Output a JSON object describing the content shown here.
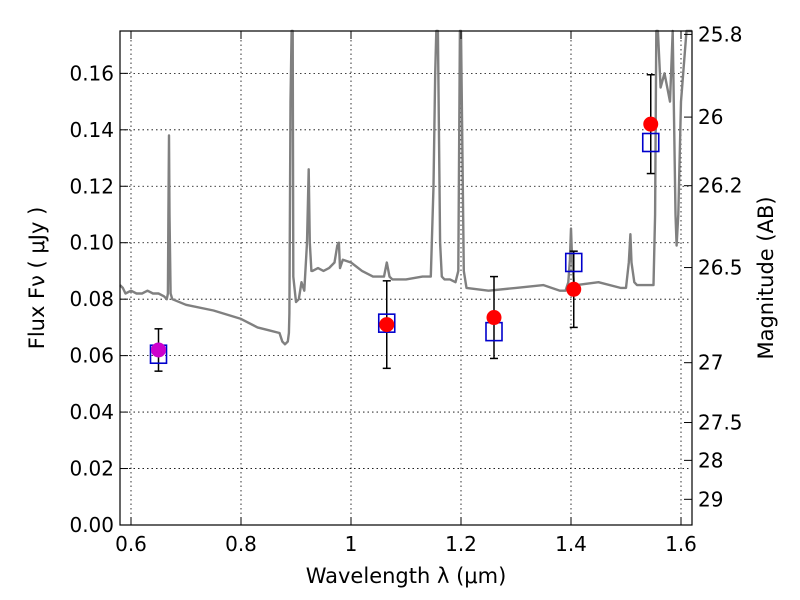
{
  "chart_data": {
    "type": "scatter",
    "title": "",
    "xlabel": "Wavelength  λ (μm)",
    "ylabel": "Flux  Fν  ( μJy )",
    "y2label": "Magnitude (AB)",
    "xlim": [
      0.58,
      1.62
    ],
    "ylim": [
      0.0,
      0.175
    ],
    "grid": true,
    "x_ticks": [
      0.6,
      0.8,
      1.0,
      1.2,
      1.4,
      1.6
    ],
    "x_tick_labels": [
      "0.6",
      "0.8",
      "1",
      "1.2",
      "1.4",
      "1.6"
    ],
    "y_ticks": [
      0.0,
      0.02,
      0.04,
      0.06,
      0.08,
      0.1,
      0.12,
      0.14,
      0.16
    ],
    "y_tick_labels": [
      "0.00",
      "0.02",
      "0.04",
      "0.06",
      "0.08",
      "0.10",
      "0.12",
      "0.14",
      "0.16"
    ],
    "y2_ticks": [
      {
        "label": "25.8",
        "flux": 0.1738
      },
      {
        "label": "26",
        "flux": 0.1445
      },
      {
        "label": "26.2",
        "flux": 0.1202
      },
      {
        "label": "26.5",
        "flux": 0.0912
      },
      {
        "label": "27",
        "flux": 0.0575
      },
      {
        "label": "27.5",
        "flux": 0.0363
      },
      {
        "label": "28",
        "flux": 0.0229
      },
      {
        "label": "29",
        "flux": 0.0091
      }
    ],
    "series": [
      {
        "marker": "line",
        "color": "#808080",
        "x": [
          0.58,
          0.585,
          0.59,
          0.6,
          0.61,
          0.62,
          0.63,
          0.64,
          0.65,
          0.66,
          0.665,
          0.667,
          0.668,
          0.669,
          0.67,
          0.672,
          0.675,
          0.7,
          0.75,
          0.8,
          0.83,
          0.85,
          0.87,
          0.875,
          0.88,
          0.885,
          0.887,
          0.888,
          0.89,
          0.892,
          0.894,
          0.895,
          0.9,
          0.905,
          0.91,
          0.915,
          0.92,
          0.923,
          0.925,
          0.928,
          0.93,
          0.94,
          0.95,
          0.96,
          0.97,
          0.975,
          0.978,
          0.98,
          0.985,
          1.0,
          1.02,
          1.04,
          1.06,
          1.065,
          1.07,
          1.075,
          1.1,
          1.13,
          1.145,
          1.15,
          1.153,
          1.155,
          1.158,
          1.162,
          1.165,
          1.17,
          1.18,
          1.19,
          1.195,
          1.198,
          1.2,
          1.205,
          1.21,
          1.25,
          1.3,
          1.35,
          1.38,
          1.39,
          1.395,
          1.398,
          1.4,
          1.402,
          1.405,
          1.41,
          1.45,
          1.49,
          1.5,
          1.505,
          1.508,
          1.51,
          1.515,
          1.52,
          1.545,
          1.55,
          1.553,
          1.555,
          1.558,
          1.563,
          1.57,
          1.58,
          1.585,
          1.59,
          1.592,
          1.595,
          1.6,
          1.61,
          1.62
        ],
        "y": [
          0.085,
          0.084,
          0.082,
          0.083,
          0.082,
          0.082,
          0.083,
          0.082,
          0.082,
          0.081,
          0.08,
          0.082,
          0.11,
          0.138,
          0.11,
          0.082,
          0.08,
          0.078,
          0.076,
          0.073,
          0.07,
          0.069,
          0.068,
          0.065,
          0.064,
          0.065,
          0.068,
          0.075,
          0.15,
          0.175,
          0.175,
          0.088,
          0.079,
          0.08,
          0.086,
          0.083,
          0.1,
          0.126,
          0.1,
          0.09,
          0.09,
          0.091,
          0.09,
          0.091,
          0.093,
          0.099,
          0.1,
          0.091,
          0.094,
          0.093,
          0.09,
          0.088,
          0.088,
          0.093,
          0.088,
          0.087,
          0.087,
          0.088,
          0.088,
          0.12,
          0.16,
          0.175,
          0.175,
          0.1,
          0.088,
          0.087,
          0.087,
          0.086,
          0.09,
          0.175,
          0.175,
          0.09,
          0.084,
          0.083,
          0.084,
          0.085,
          0.083,
          0.083,
          0.086,
          0.094,
          0.105,
          0.094,
          0.086,
          0.085,
          0.086,
          0.084,
          0.084,
          0.093,
          0.103,
          0.093,
          0.086,
          0.085,
          0.085,
          0.085,
          0.11,
          0.175,
          0.175,
          0.155,
          0.16,
          0.15,
          0.175,
          0.11,
          0.099,
          0.11,
          0.15,
          0.175,
          0.175
        ]
      },
      {
        "marker": "open-square",
        "color": "#0000cc",
        "x": [
          0.65,
          1.065,
          1.26,
          1.405,
          1.545
        ],
        "y": [
          0.0605,
          0.0715,
          0.0685,
          0.093,
          0.1355
        ]
      },
      {
        "marker": "filled-circle",
        "color": "#ff0000",
        "x": [
          0.65,
          1.065,
          1.26,
          1.405,
          1.545
        ],
        "y": [
          0.062,
          0.071,
          0.0735,
          0.0835,
          0.142
        ],
        "yerr": [
          0.0075,
          0.0155,
          0.0145,
          0.0135,
          0.0175
        ],
        "point_colors": [
          "#cc00cc",
          "#ff0000",
          "#ff0000",
          "#ff0000",
          "#ff0000"
        ]
      }
    ]
  }
}
